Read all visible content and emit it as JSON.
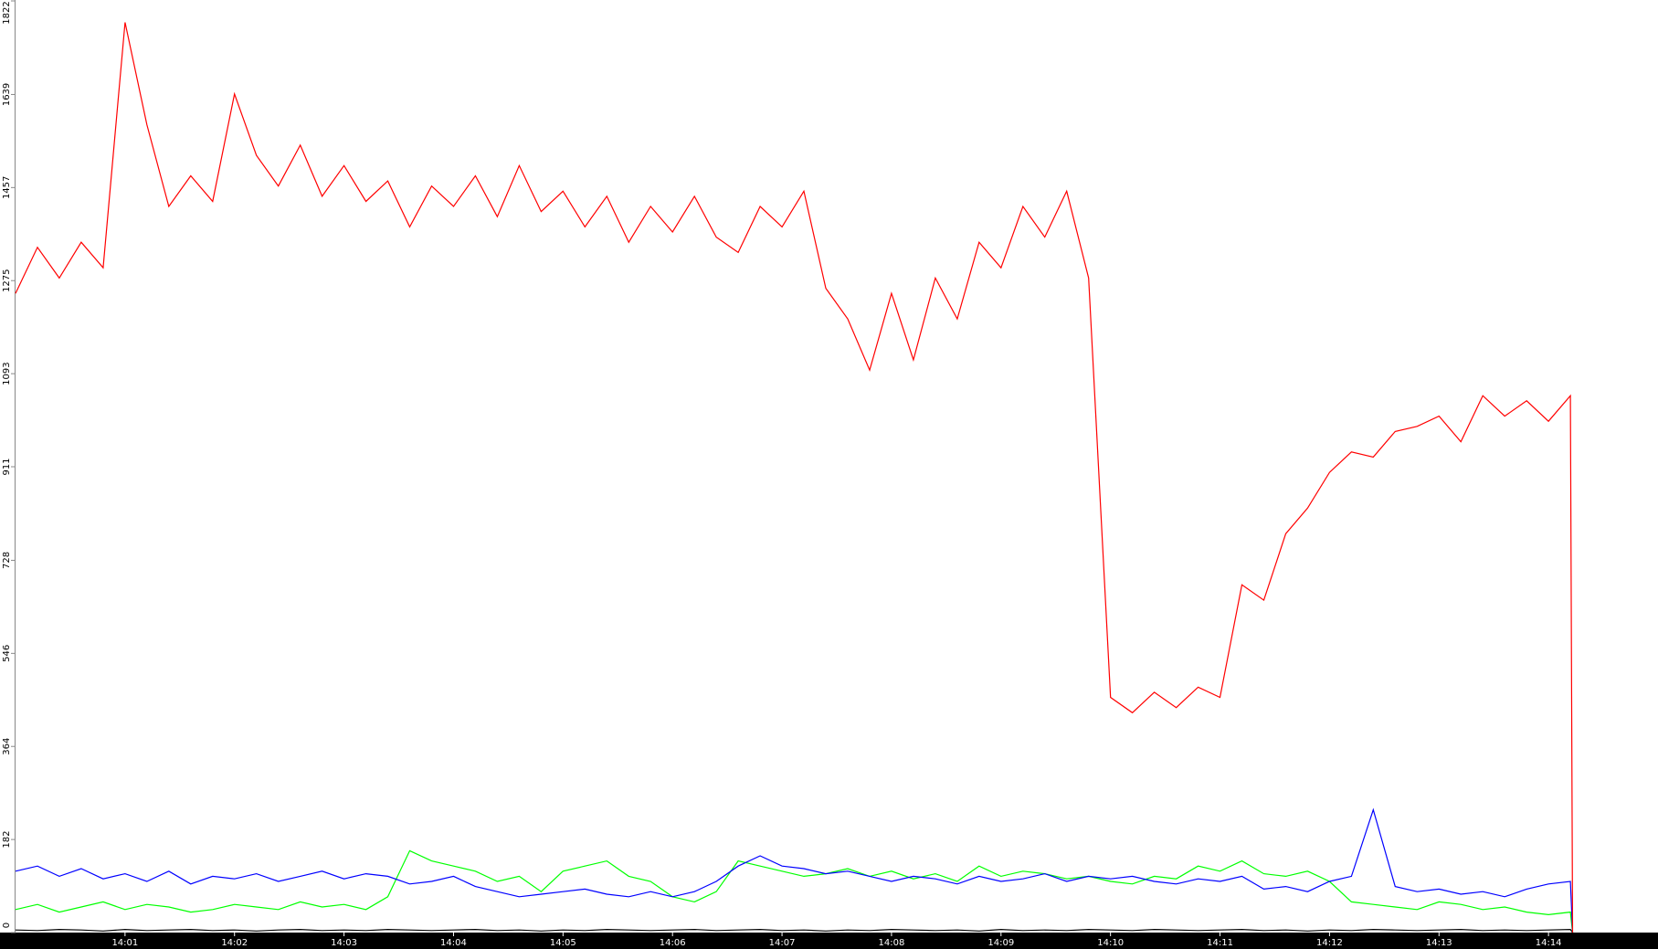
{
  "chart_data": {
    "type": "line",
    "x": [
      0,
      0.2,
      0.4,
      0.6,
      0.8,
      1,
      1.2,
      1.4,
      1.6,
      1.8,
      2,
      2.2,
      2.4,
      2.6,
      2.8,
      3,
      3.2,
      3.4,
      3.6,
      3.8,
      4,
      4.2,
      4.4,
      4.6,
      4.8,
      5,
      5.2,
      5.4,
      5.6,
      5.8,
      6,
      6.2,
      6.4,
      6.6,
      6.8,
      7,
      7.2,
      7.4,
      7.6,
      7.8,
      8,
      8.2,
      8.4,
      8.6,
      8.8,
      9,
      9.2,
      9.4,
      9.6,
      9.8,
      10,
      10.2,
      10.4,
      10.6,
      10.8,
      11,
      11.2,
      11.4,
      11.6,
      11.8,
      12,
      12.2,
      12.4,
      12.6,
      12.8,
      13,
      13.2,
      13.4,
      13.6,
      13.8,
      14,
      14.2,
      14.22
    ],
    "series": [
      {
        "name": "red",
        "color": "#ff0000",
        "values": [
          1250,
          1340,
          1280,
          1350,
          1300,
          1780,
          1580,
          1420,
          1480,
          1430,
          1640,
          1520,
          1460,
          1540,
          1440,
          1500,
          1430,
          1470,
          1380,
          1460,
          1420,
          1480,
          1400,
          1500,
          1410,
          1450,
          1380,
          1440,
          1350,
          1420,
          1370,
          1440,
          1360,
          1330,
          1420,
          1380,
          1450,
          1260,
          1200,
          1100,
          1250,
          1120,
          1280,
          1200,
          1350,
          1300,
          1420,
          1360,
          1450,
          1280,
          460,
          430,
          470,
          440,
          480,
          460,
          680,
          650,
          780,
          830,
          900,
          940,
          930,
          980,
          990,
          1010,
          960,
          1050,
          1010,
          1040,
          1000,
          1050,
          0
        ]
      },
      {
        "name": "blue",
        "color": "#0000ff",
        "values": [
          120,
          130,
          110,
          125,
          105,
          115,
          100,
          120,
          95,
          110,
          105,
          115,
          100,
          110,
          120,
          105,
          115,
          110,
          95,
          100,
          110,
          90,
          80,
          70,
          75,
          80,
          85,
          75,
          70,
          80,
          70,
          80,
          100,
          130,
          150,
          130,
          125,
          115,
          120,
          110,
          100,
          110,
          105,
          95,
          110,
          100,
          105,
          115,
          100,
          110,
          105,
          110,
          100,
          95,
          105,
          100,
          110,
          85,
          90,
          80,
          100,
          110,
          240,
          90,
          80,
          85,
          75,
          80,
          70,
          85,
          95,
          100,
          0
        ]
      },
      {
        "name": "green",
        "color": "#00ff00",
        "values": [
          45,
          55,
          40,
          50,
          60,
          45,
          55,
          50,
          40,
          45,
          55,
          50,
          45,
          60,
          50,
          55,
          45,
          70,
          160,
          140,
          130,
          120,
          100,
          110,
          80,
          120,
          130,
          140,
          110,
          100,
          70,
          60,
          80,
          140,
          130,
          120,
          110,
          115,
          125,
          110,
          120,
          105,
          115,
          100,
          130,
          110,
          120,
          115,
          105,
          110,
          100,
          95,
          110,
          105,
          130,
          120,
          140,
          115,
          110,
          120,
          100,
          60,
          55,
          50,
          45,
          60,
          55,
          45,
          50,
          40,
          35,
          40,
          0
        ]
      },
      {
        "name": "black",
        "color": "#000000",
        "values": [
          5,
          4,
          6,
          5,
          3,
          6,
          4,
          5,
          6,
          4,
          5,
          3,
          5,
          6,
          4,
          5,
          4,
          6,
          5,
          4,
          5,
          6,
          4,
          5,
          3,
          5,
          4,
          6,
          5,
          4,
          5,
          6,
          4,
          5,
          6,
          4,
          5,
          3,
          5,
          4,
          6,
          5,
          4,
          5,
          3,
          6,
          4,
          5,
          4,
          6,
          5,
          4,
          6,
          5,
          4,
          5,
          6,
          4,
          5,
          3,
          5,
          4,
          6,
          5,
          4,
          5,
          6,
          4,
          5,
          4,
          5,
          6,
          0
        ]
      }
    ],
    "xlim": [
      0,
      15
    ],
    "xticks": [
      {
        "value": 1,
        "label": "14:01"
      },
      {
        "value": 2,
        "label": "14:02"
      },
      {
        "value": 3,
        "label": "14:03"
      },
      {
        "value": 4,
        "label": "14:04"
      },
      {
        "value": 5,
        "label": "14:05"
      },
      {
        "value": 6,
        "label": "14:06"
      },
      {
        "value": 7,
        "label": "14:07"
      },
      {
        "value": 8,
        "label": "14:08"
      },
      {
        "value": 9,
        "label": "14:09"
      },
      {
        "value": 10,
        "label": "14:10"
      },
      {
        "value": 11,
        "label": "14:11"
      },
      {
        "value": 12,
        "label": "14:12"
      },
      {
        "value": 13,
        "label": "14:13"
      },
      {
        "value": 14,
        "label": "14:14"
      }
    ],
    "ylim": [
      0,
      1822
    ],
    "yticks": [
      0,
      182,
      364,
      546,
      728,
      911,
      1093,
      1275,
      1457,
      1639,
      1822
    ]
  }
}
